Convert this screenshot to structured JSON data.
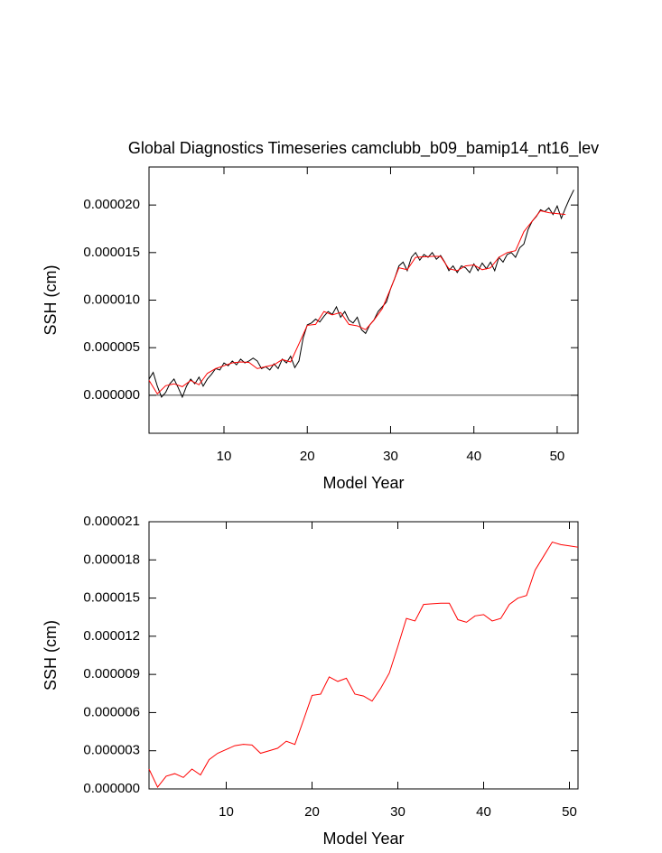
{
  "chart_data": [
    {
      "type": "line",
      "title": "Global Diagnostics Timeseries camclubb_b09_bamip14_nt16_lev",
      "x_label": "Model Year",
      "y_label": "SSH (cm)",
      "xlim": [
        1,
        52.5
      ],
      "xticks": [
        10,
        20,
        30,
        40,
        50
      ],
      "ylim": [
        -4e-06,
        2.4e-05
      ],
      "yticks": [
        {
          "value": 0,
          "label": "0.000000"
        },
        {
          "value": 5e-06,
          "label": "0.000005"
        },
        {
          "value": 1e-05,
          "label": "0.000010"
        },
        {
          "value": 1.5e-05,
          "label": "0.000015"
        },
        {
          "value": 2e-05,
          "label": "0.000020"
        }
      ],
      "zero_line": true,
      "series": [
        {
          "color": "#000000",
          "x": [
            1,
            1.5,
            2,
            2.5,
            3,
            3.5,
            4,
            4.5,
            5,
            5.5,
            6,
            6.5,
            7,
            7.5,
            8,
            8.5,
            9,
            9.5,
            10,
            10.5,
            11,
            11.5,
            12,
            12.5,
            13,
            13.5,
            14,
            14.5,
            15,
            15.5,
            16,
            16.5,
            17,
            17.5,
            18,
            18.5,
            19,
            19.5,
            20,
            20.5,
            21,
            21.5,
            22,
            22.5,
            23,
            23.5,
            24,
            24.5,
            25,
            25.5,
            26,
            26.5,
            27,
            27.5,
            28,
            28.5,
            29,
            29.5,
            30,
            30.5,
            31,
            31.5,
            32,
            32.5,
            33,
            33.5,
            34,
            34.5,
            35,
            35.5,
            36,
            36.5,
            37,
            37.5,
            38,
            38.5,
            39,
            39.5,
            40,
            40.5,
            41,
            41.5,
            42,
            42.5,
            43,
            43.5,
            44,
            44.5,
            45,
            45.5,
            46,
            46.5,
            47,
            47.5,
            48,
            48.5,
            49,
            49.5,
            50,
            50.5,
            51,
            51.5,
            52
          ],
          "values": [
            1.7e-06,
            2.4e-06,
            9.5e-07,
            -2e-07,
            3e-07,
            1.2e-06,
            1.7e-06,
            8e-07,
            -2e-07,
            9.5e-07,
            1.7e-06,
            1.2e-06,
            1.9e-06,
            9.5e-07,
            1.7e-06,
            2.2e-06,
            2.8e-06,
            2.65e-06,
            3.4e-06,
            3.1e-06,
            3.6e-06,
            3.2e-06,
            3.8e-06,
            3.4e-06,
            3.6e-06,
            3.9e-06,
            3.6e-06,
            2.8e-06,
            3e-06,
            2.65e-06,
            3.3e-06,
            2.8e-06,
            3.8e-06,
            3.4e-06,
            4.1e-06,
            2.9e-06,
            3.6e-06,
            6e-06,
            7.4e-06,
            7.6e-06,
            8e-06,
            7.7e-06,
            8.3e-06,
            8.8e-06,
            8.5e-06,
            9.3e-06,
            8.2e-06,
            8.8e-06,
            7.9e-06,
            7.6e-06,
            8.2e-06,
            6.9e-06,
            6.5e-06,
            7.4e-06,
            7.9e-06,
            8.8e-06,
            9.3e-06,
            9.8e-06,
            1.12e-05,
            1.23e-05,
            1.36e-05,
            1.4e-05,
            1.31e-05,
            1.45e-05,
            1.5e-05,
            1.42e-05,
            1.48e-05,
            1.45e-05,
            1.5e-05,
            1.43e-05,
            1.47e-05,
            1.4e-05,
            1.31e-05,
            1.36e-05,
            1.29e-05,
            1.36e-05,
            1.34e-05,
            1.29e-05,
            1.38e-05,
            1.31e-05,
            1.39e-05,
            1.33e-05,
            1.4e-05,
            1.31e-05,
            1.45e-05,
            1.4e-05,
            1.48e-05,
            1.5e-05,
            1.45e-05,
            1.55e-05,
            1.59e-05,
            1.74e-05,
            1.83e-05,
            1.88e-05,
            1.95e-05,
            1.93e-05,
            1.97e-05,
            1.9e-05,
            1.99e-05,
            1.86e-05,
            1.97e-05,
            2.07e-05,
            2.16e-05
          ]
        },
        {
          "color": "#ff0000",
          "x": [
            1,
            2,
            3,
            4,
            5,
            6,
            7,
            8,
            9,
            10,
            11,
            12,
            13,
            14,
            15,
            16,
            17,
            18,
            19,
            20,
            21,
            22,
            23,
            24,
            25,
            26,
            27,
            28,
            29,
            30,
            31,
            32,
            33,
            34,
            35,
            36,
            37,
            38,
            39,
            40,
            41,
            42,
            43,
            44,
            45,
            46,
            47,
            48,
            49,
            50,
            51
          ],
          "values": [
            1.56e-06,
            1.4e-07,
            1e-06,
            1.2e-06,
            9e-07,
            1.56e-06,
            1.1e-06,
            2.3e-06,
            2.8e-06,
            3.1e-06,
            3.4e-06,
            3.5e-06,
            3.45e-06,
            2.8e-06,
            3e-06,
            3.2e-06,
            3.75e-06,
            3.5e-06,
            5.4e-06,
            7.35e-06,
            7.45e-06,
            8.8e-06,
            8.45e-06,
            8.7e-06,
            7.45e-06,
            7.3e-06,
            6.9e-06,
            7.9e-06,
            9.1e-06,
            1.12e-05,
            1.34e-05,
            1.32e-05,
            1.45e-05,
            1.455e-05,
            1.46e-05,
            1.46e-05,
            1.33e-05,
            1.31e-05,
            1.36e-05,
            1.37e-05,
            1.32e-05,
            1.34e-05,
            1.45e-05,
            1.5e-05,
            1.52e-05,
            1.72e-05,
            1.83e-05,
            1.94e-05,
            1.92e-05,
            1.91e-05,
            1.9e-05
          ]
        }
      ]
    },
    {
      "type": "line",
      "x_label": "Model Year",
      "y_label": "SSH (cm)",
      "xlim": [
        1,
        51
      ],
      "xticks": [
        10,
        20,
        30,
        40,
        50
      ],
      "ylim": [
        0,
        2.1e-05
      ],
      "yticks": [
        {
          "value": 0,
          "label": "0.000000"
        },
        {
          "value": 3e-06,
          "label": "0.000003"
        },
        {
          "value": 6e-06,
          "label": "0.000006"
        },
        {
          "value": 9e-06,
          "label": "0.000009"
        },
        {
          "value": 1.2e-05,
          "label": "0.000012"
        },
        {
          "value": 1.5e-05,
          "label": "0.000015"
        },
        {
          "value": 1.8e-05,
          "label": "0.000018"
        },
        {
          "value": 2.1e-05,
          "label": "0.000021"
        }
      ],
      "series": [
        {
          "color": "#ff0000",
          "x": [
            1,
            2,
            3,
            4,
            5,
            6,
            7,
            8,
            9,
            10,
            11,
            12,
            13,
            14,
            15,
            16,
            17,
            18,
            19,
            20,
            21,
            22,
            23,
            24,
            25,
            26,
            27,
            28,
            29,
            30,
            31,
            32,
            33,
            34,
            35,
            36,
            37,
            38,
            39,
            40,
            41,
            42,
            43,
            44,
            45,
            46,
            47,
            48,
            49,
            50,
            51
          ],
          "values": [
            1.56e-06,
            1.4e-07,
            1e-06,
            1.2e-06,
            9e-07,
            1.56e-06,
            1.1e-06,
            2.3e-06,
            2.8e-06,
            3.1e-06,
            3.4e-06,
            3.5e-06,
            3.45e-06,
            2.8e-06,
            3e-06,
            3.2e-06,
            3.75e-06,
            3.5e-06,
            5.4e-06,
            7.35e-06,
            7.45e-06,
            8.8e-06,
            8.45e-06,
            8.7e-06,
            7.45e-06,
            7.3e-06,
            6.9e-06,
            7.9e-06,
            9.1e-06,
            1.12e-05,
            1.34e-05,
            1.32e-05,
            1.45e-05,
            1.455e-05,
            1.46e-05,
            1.46e-05,
            1.33e-05,
            1.31e-05,
            1.36e-05,
            1.37e-05,
            1.32e-05,
            1.34e-05,
            1.45e-05,
            1.5e-05,
            1.52e-05,
            1.72e-05,
            1.83e-05,
            1.94e-05,
            1.92e-05,
            1.91e-05,
            1.9e-05
          ]
        }
      ]
    }
  ]
}
